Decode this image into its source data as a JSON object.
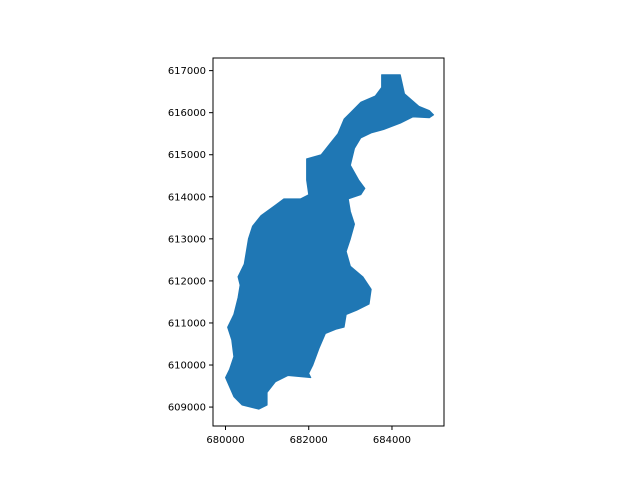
{
  "map": {
    "type": "filled-polygon-plot",
    "fill_color": "#1f77b4",
    "background": "#ffffff",
    "xlim": [
      679700,
      685250
    ],
    "ylim": [
      608550,
      617300
    ],
    "x_ticks": [
      {
        "value": 680000,
        "label": "680000"
      },
      {
        "value": 682000,
        "label": "682000"
      },
      {
        "value": 684000,
        "label": "684000"
      }
    ],
    "y_ticks": [
      {
        "value": 609000,
        "label": "609000"
      },
      {
        "value": 610000,
        "label": "610000"
      },
      {
        "value": 611000,
        "label": "611000"
      },
      {
        "value": 612000,
        "label": "612000"
      },
      {
        "value": 613000,
        "label": "613000"
      },
      {
        "value": 614000,
        "label": "614000"
      },
      {
        "value": 615000,
        "label": "615000"
      },
      {
        "value": 616000,
        "label": "616000"
      },
      {
        "value": 617000,
        "label": "617000"
      }
    ],
    "outline": [
      [
        683750,
        616900
      ],
      [
        684200,
        616900
      ],
      [
        684300,
        616450
      ],
      [
        684650,
        616150
      ],
      [
        684900,
        616050
      ],
      [
        685000,
        615950
      ],
      [
        684900,
        615880
      ],
      [
        684500,
        615900
      ],
      [
        684200,
        615750
      ],
      [
        683800,
        615600
      ],
      [
        683500,
        615520
      ],
      [
        683250,
        615400
      ],
      [
        683100,
        615150
      ],
      [
        683000,
        614750
      ],
      [
        683200,
        614400
      ],
      [
        683350,
        614200
      ],
      [
        683250,
        614050
      ],
      [
        682950,
        613950
      ],
      [
        683000,
        613650
      ],
      [
        683100,
        613350
      ],
      [
        683000,
        613000
      ],
      [
        682900,
        612700
      ],
      [
        683000,
        612350
      ],
      [
        683300,
        612100
      ],
      [
        683500,
        611800
      ],
      [
        683450,
        611450
      ],
      [
        683150,
        611300
      ],
      [
        682900,
        611200
      ],
      [
        682850,
        610900
      ],
      [
        682650,
        610850
      ],
      [
        682400,
        610750
      ],
      [
        682250,
        610400
      ],
      [
        682100,
        610000
      ],
      [
        682000,
        609800
      ],
      [
        682050,
        609700
      ],
      [
        681500,
        609750
      ],
      [
        681200,
        609600
      ],
      [
        681000,
        609350
      ],
      [
        681000,
        609050
      ],
      [
        680800,
        608950
      ],
      [
        680400,
        609050
      ],
      [
        680200,
        609250
      ],
      [
        680000,
        609700
      ],
      [
        680100,
        609900
      ],
      [
        680200,
        610200
      ],
      [
        680150,
        610600
      ],
      [
        680050,
        610900
      ],
      [
        680200,
        611200
      ],
      [
        680300,
        611600
      ],
      [
        680350,
        611900
      ],
      [
        680300,
        612100
      ],
      [
        680450,
        612400
      ],
      [
        680500,
        612700
      ],
      [
        680550,
        613000
      ],
      [
        680650,
        613300
      ],
      [
        680850,
        613550
      ],
      [
        681200,
        613800
      ],
      [
        681400,
        613950
      ],
      [
        681800,
        613950
      ],
      [
        682000,
        614050
      ],
      [
        681950,
        614400
      ],
      [
        681950,
        614650
      ],
      [
        681950,
        614900
      ],
      [
        682300,
        615000
      ],
      [
        682500,
        615250
      ],
      [
        682700,
        615500
      ],
      [
        682850,
        615850
      ],
      [
        683000,
        616000
      ],
      [
        683250,
        616250
      ],
      [
        683600,
        616400
      ],
      [
        683750,
        616600
      ]
    ]
  }
}
